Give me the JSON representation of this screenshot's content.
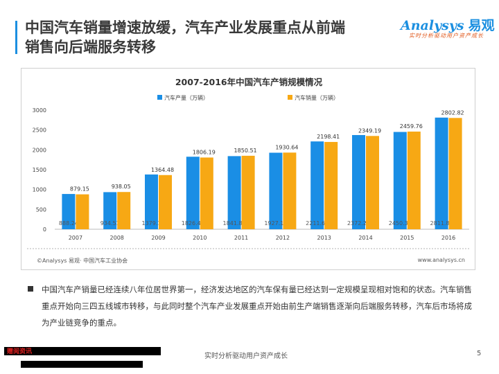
{
  "header": {
    "title_line1": "中国汽车销量增速放缓，汽车产业发展重点从前端",
    "title_line2": "销售向后端服务转移",
    "logo_text": "Analysys",
    "logo_cn": "易观",
    "logo_tagline": "实时分析驱动用户资产成长",
    "accent_color": "#1b8fe0"
  },
  "chart_data": {
    "type": "bar",
    "title": "2007-2016年中国汽车产销规模情况",
    "categories": [
      "2007",
      "2008",
      "2009",
      "2010",
      "2011",
      "2012",
      "2013",
      "2014",
      "2015",
      "2016"
    ],
    "series": [
      {
        "name": "汽车产量（万辆）",
        "color": "#1a8ee5",
        "values": [
          888.24,
          934.51,
          1379.1,
          1826.47,
          1841.89,
          1927.18,
          2211.68,
          2372.29,
          2450.33,
          2811.88
        ]
      },
      {
        "name": "汽车销量（万辆）",
        "color": "#f7a814",
        "values": [
          879.15,
          938.05,
          1364.48,
          1806.19,
          1850.51,
          1930.64,
          2198.41,
          2349.19,
          2459.76,
          2802.82
        ]
      }
    ],
    "y_ticks": [
      "0",
      "500",
      "1000",
      "1500",
      "2000",
      "2500",
      "3000"
    ],
    "ylim": [
      0,
      3000
    ],
    "legend_position": "top",
    "grid": false
  },
  "chart_footer": {
    "source": "©Analysys 易观· 中国汽车工业协会",
    "site": "www.analysys.cn"
  },
  "body": {
    "paragraph": "中国汽车产销量已经连续八年位居世界第一，经济发达地区的汽车保有量已经达到一定规模呈现相对饱和的状态。汽车销售重点开始向三四五线城市转移，与此同时整个汽车产业发展重点开始由前生产端销售逐渐向后端服务转移，汽车后市场将成为产业链竞争的重点。"
  },
  "footer": {
    "red_label": "赠阅资讯",
    "slogan": "实时分析驱动用户资产成长",
    "page_number": "5"
  }
}
